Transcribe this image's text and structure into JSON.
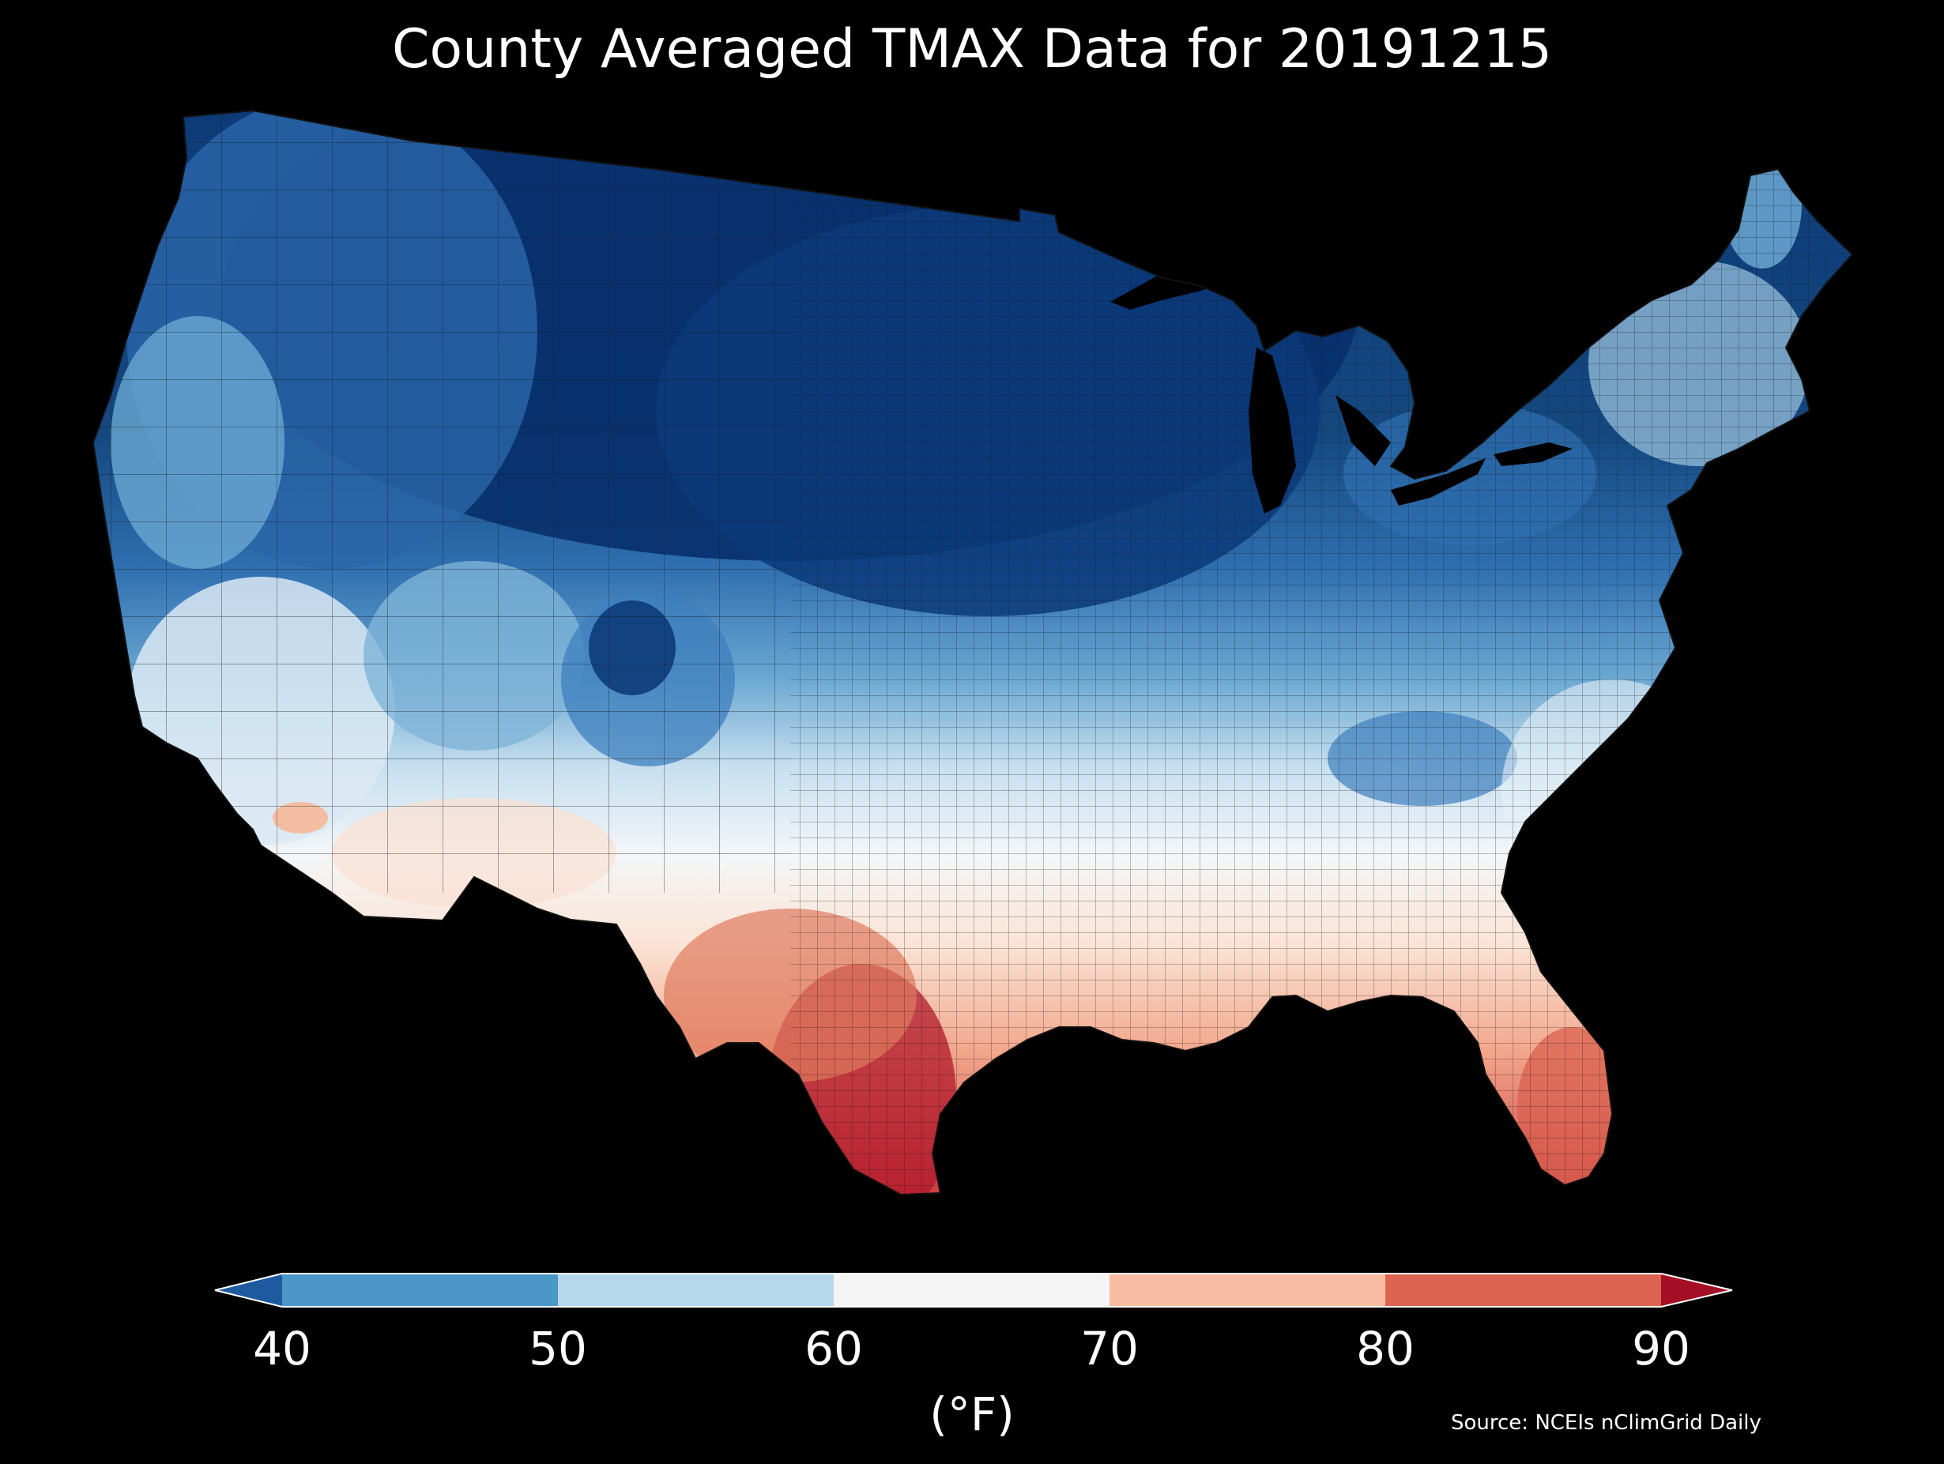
{
  "title": "County Averaged TMAX Data for 20191215",
  "colorbar": {
    "ticks": [
      "40",
      "50",
      "60",
      "70",
      "80",
      "90"
    ],
    "unit": "(°F)",
    "bins": [
      {
        "range": "<40",
        "color": "#1f5aa0"
      },
      {
        "range": "40-50",
        "color": "#4b97c8"
      },
      {
        "range": "50-60",
        "color": "#b7d7ea"
      },
      {
        "range": "60-70",
        "color": "#f5f5f5"
      },
      {
        "range": "70-80",
        "color": "#f7bca2"
      },
      {
        "range": "80-90",
        "color": "#dc6450"
      },
      {
        "range": ">90",
        "color": "#a50f26"
      }
    ]
  },
  "source": "Source: NCEIs nClimGrid Daily",
  "colors": {
    "background": "#000000",
    "county_border": "#1a1a1a"
  }
}
